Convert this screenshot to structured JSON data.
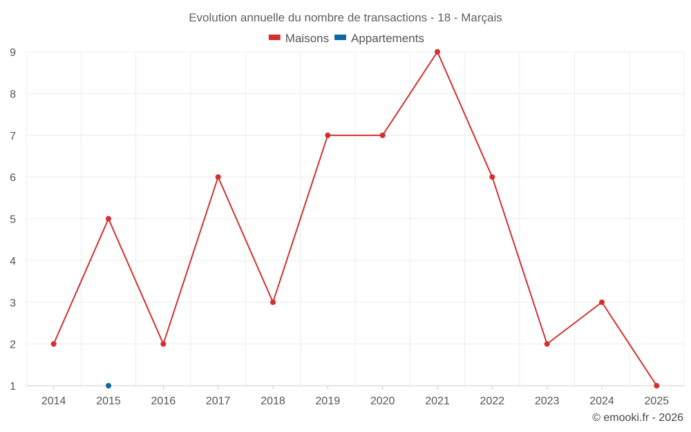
{
  "chart_data": {
    "type": "line",
    "title": "Evolution annuelle du nombre de transactions - 18 - Marçais",
    "categories": [
      "2014",
      "2015",
      "2016",
      "2017",
      "2018",
      "2019",
      "2020",
      "2021",
      "2022",
      "2023",
      "2024",
      "2025"
    ],
    "series": [
      {
        "name": "Maisons",
        "color": "#d32f2f",
        "values": [
          2,
          5,
          2,
          6,
          3,
          7,
          7,
          9,
          6,
          2,
          3,
          1
        ]
      },
      {
        "name": "Appartements",
        "color": "#0d6aa0",
        "values": [
          null,
          1,
          null,
          null,
          null,
          null,
          null,
          null,
          null,
          null,
          null,
          null
        ]
      }
    ],
    "yticks": [
      1,
      2,
      3,
      4,
      5,
      6,
      7,
      8,
      9
    ],
    "ylim": [
      1,
      9
    ],
    "xlabel": "",
    "ylabel": "",
    "grid": true,
    "legend_position": "top-center"
  },
  "credit": "© emooki.fr - 2026"
}
